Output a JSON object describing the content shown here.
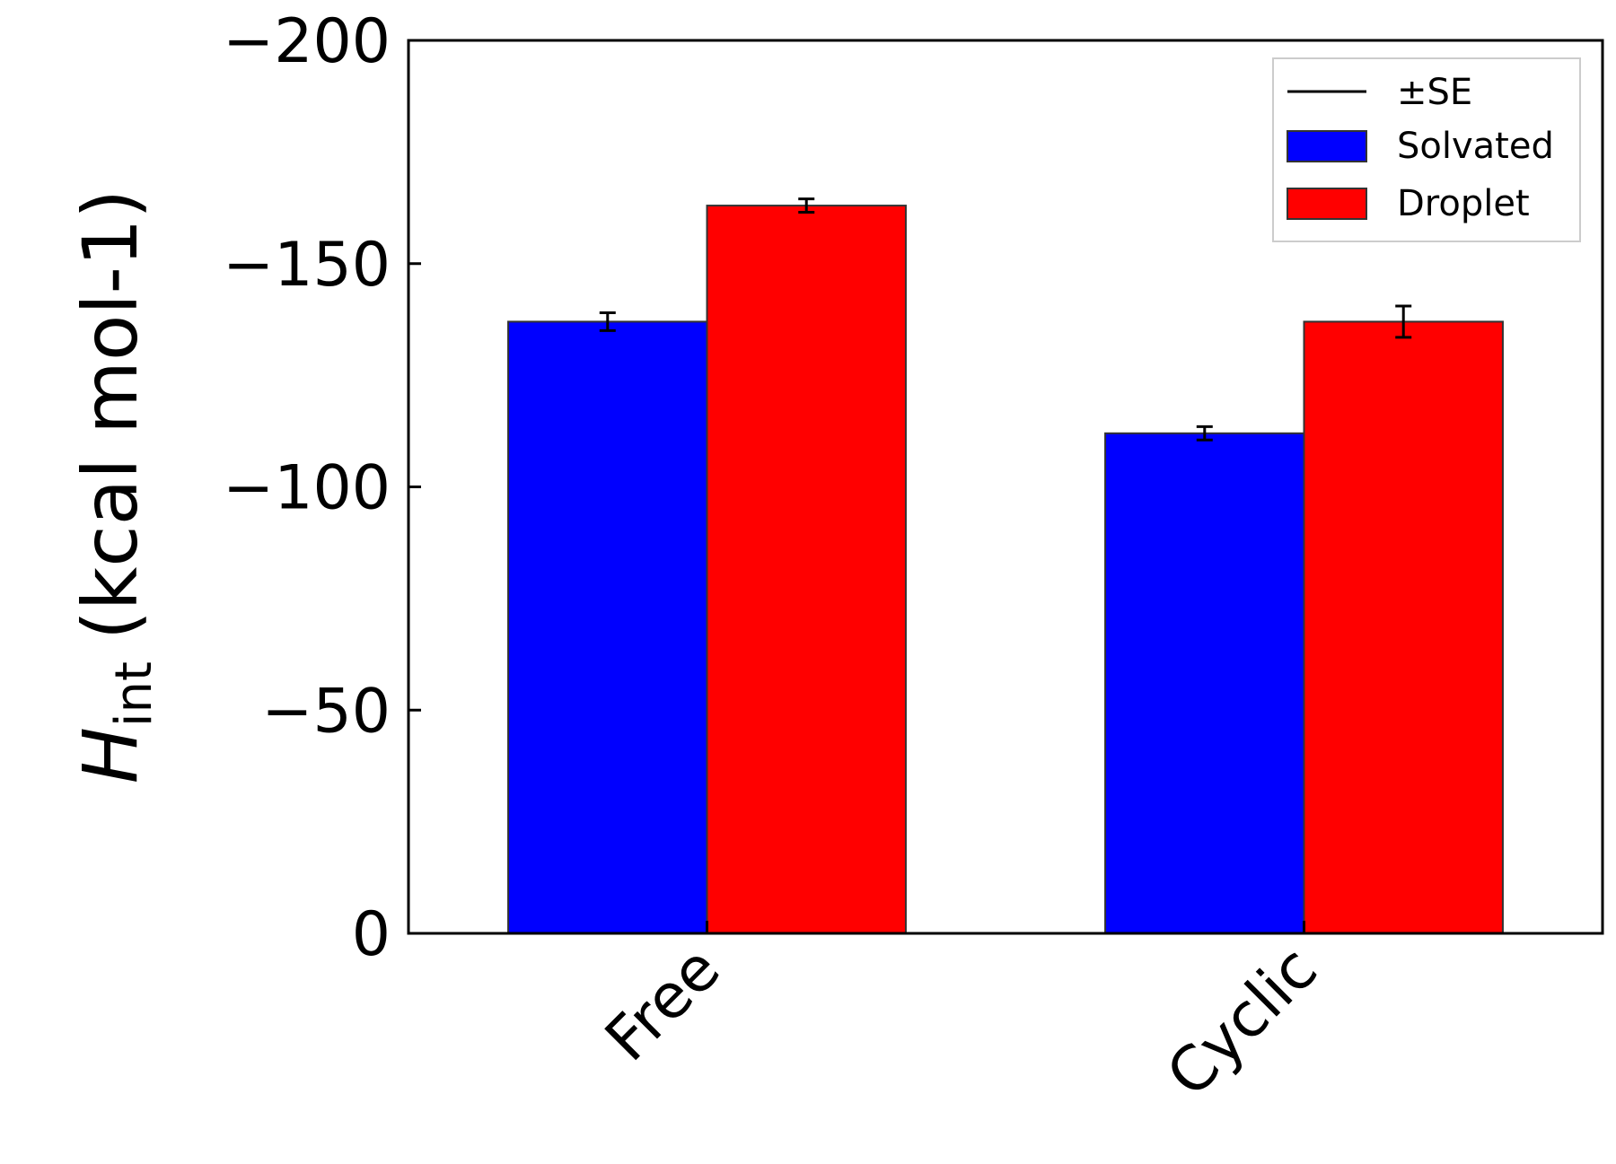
{
  "chart_data": {
    "type": "bar",
    "categories": [
      "Free",
      "Cyclic"
    ],
    "series": [
      {
        "name": "Solvated",
        "color": "#0000ff",
        "values": [
          -137,
          -112
        ],
        "errors": [
          2,
          1.5
        ]
      },
      {
        "name": "Droplet",
        "color": "#ff0000",
        "values": [
          -163,
          -137
        ],
        "errors": [
          1.5,
          3.5
        ]
      }
    ],
    "error_label": "±SE",
    "ylabel": {
      "symbol": "H",
      "subscript": "int",
      "units": "(kcal mol-1)"
    },
    "xlabel": "",
    "ylim": [
      0,
      -200
    ],
    "yticks": [
      0,
      -50,
      -100,
      -150,
      -200
    ],
    "ytick_labels": [
      "0",
      "−50",
      "−100",
      "−150",
      "−200"
    ],
    "y_inverted": true,
    "legend_position": "top-right",
    "grid": false
  }
}
